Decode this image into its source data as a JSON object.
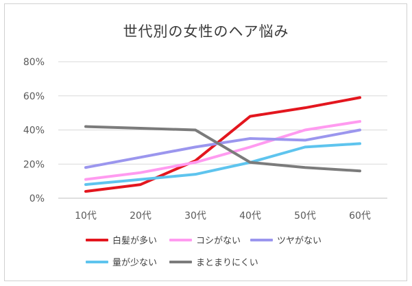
{
  "chart_data": {
    "type": "line",
    "title": "世代別の女性のヘア悩み",
    "categories": [
      "10代",
      "20代",
      "30代",
      "40代",
      "50代",
      "60代"
    ],
    "yticks": [
      "0%",
      "20%",
      "40%",
      "60%",
      "80%"
    ],
    "ylim": [
      0,
      80
    ],
    "grid": true,
    "legend_position": "bottom",
    "series": [
      {
        "name": "白髪が多い",
        "color": "#e3161e",
        "values": [
          4,
          8,
          22,
          48,
          53,
          59
        ]
      },
      {
        "name": "コシがない",
        "color": "#ff9bf0",
        "values": [
          11,
          15,
          21,
          30,
          40,
          45
        ]
      },
      {
        "name": "ツヤがない",
        "color": "#9b96ee",
        "values": [
          18,
          24,
          30,
          35,
          34,
          40
        ]
      },
      {
        "name": "量が少ない",
        "color": "#5ec4ee",
        "values": [
          8,
          11,
          14,
          21,
          30,
          32
        ]
      },
      {
        "name": "まとまりにくい",
        "color": "#7b7b7b",
        "values": [
          42,
          41,
          40,
          21,
          18,
          16
        ]
      }
    ]
  }
}
